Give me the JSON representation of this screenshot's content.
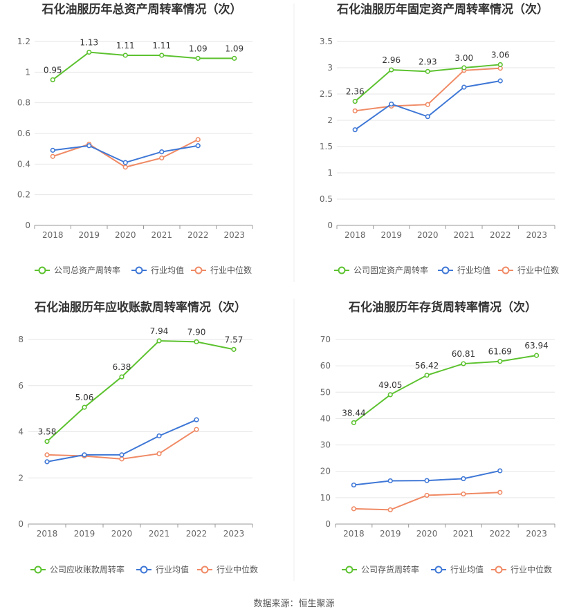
{
  "colors": {
    "company": "#5cc22f",
    "avg": "#3e77d6",
    "median": "#f08a65",
    "grid": "#e6e6e6",
    "axis": "#999999"
  },
  "source": "数据来源：恒生聚源",
  "chart_data": [
    {
      "type": "line",
      "title": "石化油服历年总资产周转率情况（次）",
      "categories": [
        "2018",
        "2019",
        "2020",
        "2021",
        "2022",
        "2023"
      ],
      "ylim": [
        0,
        1.2
      ],
      "yticks": [
        "0",
        "0.2",
        "0.4",
        "0.6",
        "0.8",
        "1",
        "1.2"
      ],
      "series": [
        {
          "name": "公司总资产周转率",
          "values": [
            0.95,
            1.13,
            1.11,
            1.11,
            1.09,
            1.09
          ],
          "labels": [
            "0.95",
            "1.13",
            "1.11",
            "1.11",
            "1.09",
            "1.09"
          ]
        },
        {
          "name": "行业均值",
          "values": [
            0.49,
            0.52,
            0.41,
            0.48,
            0.52,
            null
          ]
        },
        {
          "name": "行业中位数",
          "values": [
            0.45,
            0.53,
            0.38,
            0.44,
            0.56,
            null
          ]
        }
      ]
    },
    {
      "type": "line",
      "title": "石化油服历年固定资产周转率情况（次）",
      "categories": [
        "2018",
        "2019",
        "2020",
        "2021",
        "2022",
        "2023"
      ],
      "ylim": [
        0,
        3.5
      ],
      "yticks": [
        "0",
        "0.5",
        "1",
        "1.5",
        "2",
        "2.5",
        "3",
        "3.5"
      ],
      "series": [
        {
          "name": "公司固定资产周转率",
          "values": [
            2.36,
            2.96,
            2.93,
            3.0,
            3.06,
            null
          ],
          "labels": [
            "2.36",
            "2.96",
            "2.93",
            "3.00",
            "3.06",
            null
          ]
        },
        {
          "name": "行业均值",
          "values": [
            1.82,
            2.31,
            2.07,
            2.63,
            2.75,
            null
          ]
        },
        {
          "name": "行业中位数",
          "values": [
            2.18,
            2.27,
            2.3,
            2.95,
            2.99,
            null
          ]
        }
      ]
    },
    {
      "type": "line",
      "title": "石化油服历年应收账款周转率情况（次）",
      "categories": [
        "2018",
        "2019",
        "2020",
        "2021",
        "2022",
        "2023"
      ],
      "ylim": [
        0,
        8
      ],
      "yticks": [
        "0",
        "2",
        "4",
        "6",
        "8"
      ],
      "series": [
        {
          "name": "公司应收账款周转率",
          "values": [
            3.58,
            5.06,
            6.38,
            7.94,
            7.9,
            7.57
          ],
          "labels": [
            "3.58",
            "5.06",
            "6.38",
            "7.94",
            "7.90",
            "7.57"
          ]
        },
        {
          "name": "行业均值",
          "values": [
            2.7,
            3.0,
            3.0,
            3.82,
            4.52,
            null
          ]
        },
        {
          "name": "行业中位数",
          "values": [
            3.0,
            2.95,
            2.82,
            3.05,
            4.1,
            null
          ]
        }
      ]
    },
    {
      "type": "line",
      "title": "石化油服历年存货周转率情况（次）",
      "categories": [
        "2018",
        "2019",
        "2020",
        "2021",
        "2022",
        "2023"
      ],
      "ylim": [
        0,
        70
      ],
      "yticks": [
        "0",
        "10",
        "20",
        "30",
        "40",
        "50",
        "60",
        "70"
      ],
      "series": [
        {
          "name": "公司存货周转率",
          "values": [
            38.44,
            49.05,
            56.42,
            60.81,
            61.69,
            63.94
          ],
          "labels": [
            "38.44",
            "49.05",
            "56.42",
            "60.81",
            "61.69",
            "63.94"
          ]
        },
        {
          "name": "行业均值",
          "values": [
            14.8,
            16.4,
            16.5,
            17.2,
            20.2,
            null
          ]
        },
        {
          "name": "行业中位数",
          "values": [
            5.8,
            5.4,
            10.9,
            11.4,
            12.0,
            null
          ]
        }
      ]
    }
  ]
}
